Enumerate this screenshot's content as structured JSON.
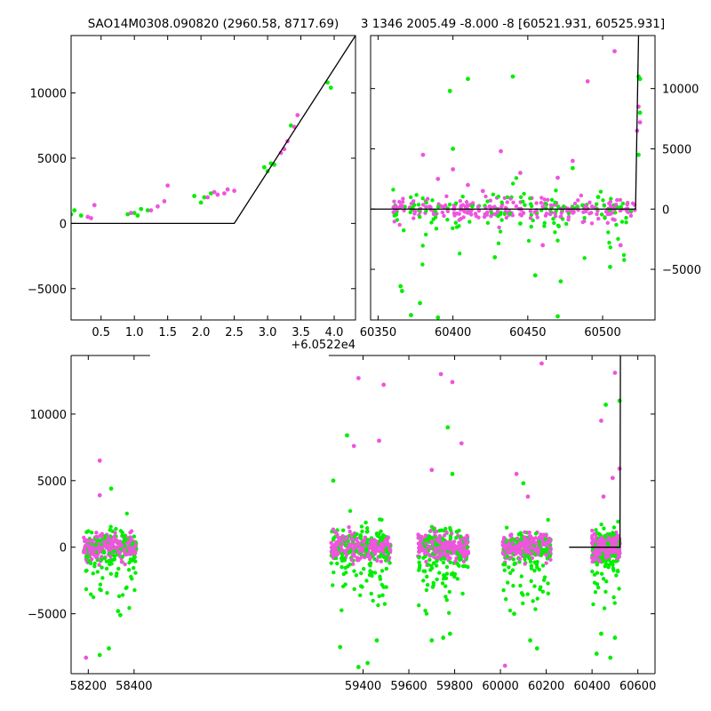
{
  "chart_data": [
    {
      "id": "top-left",
      "type": "scatter",
      "title": "SAO14M0308.090820 (2960.58, 8717.69)",
      "xlim": [
        0.05,
        4.32
      ],
      "ylim": [
        -7400,
        14400
      ],
      "x_offset_label": "+6.0522e4",
      "xticks": [
        0.5,
        1.0,
        1.5,
        2.0,
        2.5,
        3.0,
        3.5,
        4.0
      ],
      "xtick_labels": [
        "0.5",
        "1.0",
        "1.5",
        "2.0",
        "2.5",
        "3.0",
        "3.5",
        "4.0"
      ],
      "yticks": [
        -5000,
        0,
        5000,
        10000
      ],
      "ytick_labels": [
        "−5000",
        "0",
        "5000",
        "10000"
      ],
      "ytick_side": "left",
      "series": [
        {
          "color": "#00ee00",
          "points": [
            [
              0.05,
              700
            ],
            [
              0.1,
              1000
            ],
            [
              0.2,
              600
            ],
            [
              0.9,
              700
            ],
            [
              1.0,
              800
            ],
            [
              1.05,
              600
            ],
            [
              1.1,
              1100
            ],
            [
              1.2,
              1000
            ],
            [
              1.9,
              2100
            ],
            [
              2.0,
              1600
            ],
            [
              2.05,
              2000
            ],
            [
              2.15,
              2300
            ],
            [
              2.95,
              4300
            ],
            [
              3.0,
              4000
            ],
            [
              3.05,
              4600
            ],
            [
              3.1,
              4500
            ],
            [
              3.35,
              7500
            ],
            [
              3.9,
              10800
            ],
            [
              3.95,
              10400
            ]
          ]
        },
        {
          "color": "#ee55dd",
          "points": [
            [
              0.3,
              500
            ],
            [
              0.35,
              400
            ],
            [
              0.4,
              1400
            ],
            [
              0.95,
              800
            ],
            [
              1.25,
              1000
            ],
            [
              1.35,
              1300
            ],
            [
              1.45,
              1700
            ],
            [
              1.5,
              2900
            ],
            [
              2.1,
              2000
            ],
            [
              2.2,
              2400
            ],
            [
              2.25,
              2200
            ],
            [
              2.35,
              2300
            ],
            [
              2.4,
              2600
            ],
            [
              2.5,
              2500
            ],
            [
              3.2,
              5400
            ],
            [
              3.25,
              5700
            ],
            [
              3.3,
              6300
            ],
            [
              3.4,
              7400
            ],
            [
              3.45,
              8300
            ]
          ]
        }
      ],
      "model_line": [
        [
          0.05,
          0
        ],
        [
          2.5,
          0
        ],
        [
          4.32,
          14400
        ]
      ]
    },
    {
      "id": "top-right",
      "type": "scatter",
      "title": "3 1346 2005.49 -8.000 -8 [60521.931, 60525.931]",
      "xlim": [
        60345,
        60535
      ],
      "ylim": [
        -9200,
        14400
      ],
      "xticks": [
        60350,
        60400,
        60450,
        60500
      ],
      "xtick_labels": [
        "60350",
        "60400",
        "60450",
        "60500"
      ],
      "yticks": [
        -5000,
        0,
        5000,
        10000
      ],
      "ytick_labels": [
        "−5000",
        "0",
        "5000",
        "10000"
      ],
      "ytick_side": "right",
      "series": [
        {
          "color": "#00ee00",
          "points": [
            [
              60365,
              -6400
            ],
            [
              60366,
              -6800
            ],
            [
              60372,
              -8800
            ],
            [
              60378,
              -7800
            ],
            [
              60390,
              -9000
            ],
            [
              60398,
              9800
            ],
            [
              60410,
              10800
            ],
            [
              60400,
              5000
            ],
            [
              60428,
              -4000
            ],
            [
              60440,
              11000
            ],
            [
              60445,
              -1200
            ],
            [
              60455,
              -5500
            ],
            [
              60470,
              -8900
            ],
            [
              60472,
              -6000
            ],
            [
              60480,
              3400
            ],
            [
              60497,
              1000
            ],
            [
              60505,
              -4800
            ],
            [
              60524,
              4500
            ],
            [
              60524,
              11000
            ],
            [
              60525,
              10800
            ],
            [
              60525,
              8000
            ]
          ]
        },
        {
          "color": "#ee55dd",
          "points": [
            [
              60380,
              4500
            ],
            [
              60390,
              2500
            ],
            [
              60400,
              3300
            ],
            [
              60410,
              2000
            ],
            [
              60420,
              1500
            ],
            [
              60432,
              4800
            ],
            [
              60445,
              3000
            ],
            [
              60460,
              -3000
            ],
            [
              60470,
              2600
            ],
            [
              60480,
              4000
            ],
            [
              60490,
              10600
            ],
            [
              60508,
              13100
            ],
            [
              60512,
              -3000
            ],
            [
              60523,
              6500
            ],
            [
              60524,
              8500
            ],
            [
              60525,
              7200
            ]
          ]
        }
      ],
      "cloud_x_range": [
        60360,
        60522
      ],
      "model_line": [
        [
          60345,
          0
        ],
        [
          60522,
          0
        ],
        [
          60524,
          14400
        ]
      ]
    },
    {
      "id": "bottom",
      "type": "scatter",
      "title": "",
      "xlim": [
        58125,
        60675
      ],
      "ylim": [
        -9500,
        14400
      ],
      "xticks": [
        58200,
        58400,
        59400,
        59600,
        59800,
        60000,
        60200,
        60400,
        60600
      ],
      "xtick_labels": [
        "58200",
        "58400",
        "59400",
        "59600",
        "59800",
        "60000",
        "60200",
        "60400",
        "60600"
      ],
      "yticks": [
        -5000,
        0,
        5000,
        10000
      ],
      "ytick_labels": [
        "−5000",
        "0",
        "5000",
        "10000"
      ],
      "ytick_side": "left",
      "axis_breaks": [
        58470,
        59250
      ],
      "segments": [
        [
          58180,
          58410
        ],
        [
          59260,
          59520
        ],
        [
          59640,
          59860
        ],
        [
          60010,
          60220
        ],
        [
          60400,
          60522
        ]
      ],
      "series": [
        {
          "color": "#00ee00",
          "points": [
            [
              58300,
              4400
            ],
            [
              58330,
              -4800
            ],
            [
              58340,
              -5100
            ],
            [
              58250,
              -8100
            ],
            [
              58290,
              -7600
            ],
            [
              59270,
              5000
            ],
            [
              59300,
              -7500
            ],
            [
              59330,
              8400
            ],
            [
              59380,
              -9000
            ],
            [
              59420,
              -8700
            ],
            [
              59460,
              -7000
            ],
            [
              59700,
              -7000
            ],
            [
              59750,
              -6800
            ],
            [
              59770,
              9000
            ],
            [
              59780,
              -6500
            ],
            [
              59790,
              5500
            ],
            [
              60060,
              -5000
            ],
            [
              60100,
              4800
            ],
            [
              60130,
              -7000
            ],
            [
              60160,
              -7600
            ],
            [
              60420,
              -8000
            ],
            [
              60440,
              -6500
            ],
            [
              60460,
              10700
            ],
            [
              60480,
              -8300
            ],
            [
              60500,
              -6800
            ],
            [
              60520,
              11000
            ]
          ]
        },
        {
          "color": "#ee55dd",
          "points": [
            [
              58190,
              -8300
            ],
            [
              58250,
              6500
            ],
            [
              58250,
              3900
            ],
            [
              59360,
              7600
            ],
            [
              59380,
              12700
            ],
            [
              59470,
              8000
            ],
            [
              59490,
              12200
            ],
            [
              59700,
              5800
            ],
            [
              59740,
              13000
            ],
            [
              59790,
              12400
            ],
            [
              59830,
              7800
            ],
            [
              60020,
              -8900
            ],
            [
              60070,
              5500
            ],
            [
              60120,
              3800
            ],
            [
              60180,
              13800
            ],
            [
              60440,
              9500
            ],
            [
              60450,
              3800
            ],
            [
              60490,
              5200
            ],
            [
              60500,
              13100
            ],
            [
              60520,
              5900
            ]
          ]
        }
      ],
      "model_line": [
        [
          60300,
          0
        ],
        [
          60522,
          0
        ],
        [
          60524,
          14400
        ]
      ]
    }
  ]
}
